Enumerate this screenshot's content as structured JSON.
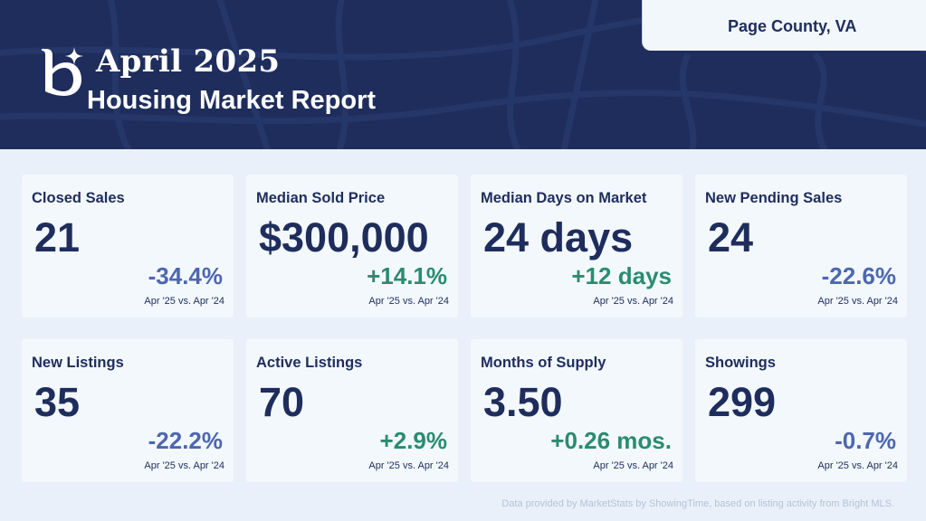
{
  "header": {
    "month": "April 2025",
    "subtitle": "Housing Market Report",
    "location": "Page County, VA",
    "logo_icon": "b-sparkle-logo-icon",
    "background_color": "#1e2d5c"
  },
  "metrics": [
    {
      "label": "Closed Sales",
      "value": "21",
      "change": "-34.4%",
      "trend": "negative",
      "note": "Apr '25 vs. Apr '24"
    },
    {
      "label": "Median Sold Price",
      "value": "$300,000",
      "change": "+14.1%",
      "trend": "positive",
      "note": "Apr '25 vs. Apr '24"
    },
    {
      "label": "Median Days on Market",
      "value": "24 days",
      "change": "+12 days",
      "trend": "positive",
      "note": "Apr '25 vs. Apr '24"
    },
    {
      "label": "New Pending Sales",
      "value": "24",
      "change": "-22.6%",
      "trend": "negative",
      "note": "Apr '25 vs. Apr '24"
    },
    {
      "label": "New Listings",
      "value": "35",
      "change": "-22.2%",
      "trend": "negative",
      "note": "Apr '25 vs. Apr '24"
    },
    {
      "label": "Active Listings",
      "value": "70",
      "change": "+2.9%",
      "trend": "positive",
      "note": "Apr '25 vs. Apr '24"
    },
    {
      "label": "Months of Supply",
      "value": "3.50",
      "change": "+0.26 mos.",
      "trend": "positive",
      "note": "Apr '25 vs. Apr '24"
    },
    {
      "label": "Showings",
      "value": "299",
      "change": "-0.7%",
      "trend": "negative",
      "note": "Apr '25 vs. Apr '24"
    }
  ],
  "colors": {
    "positive": "#2a8c6e",
    "negative": "#4d67b0",
    "navy": "#1e2d5c"
  },
  "footer": {
    "source": "Data provided by MarketStats by ShowingTime, based on listing activity from Bright MLS."
  }
}
